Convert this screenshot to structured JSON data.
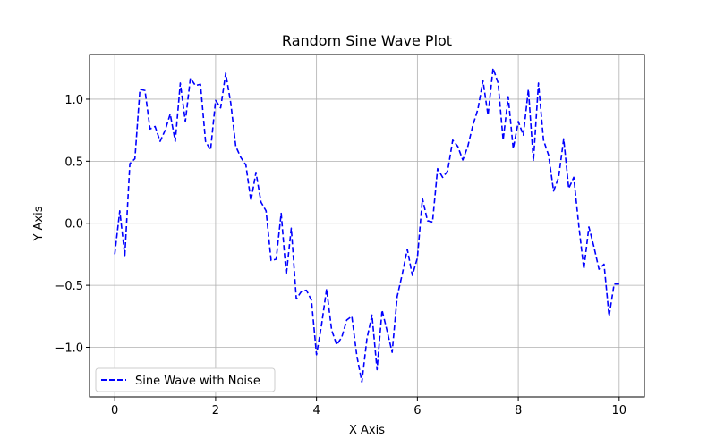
{
  "chart_data": {
    "type": "line",
    "title": "Random Sine Wave Plot",
    "xlabel": "X Axis",
    "ylabel": "Y Axis",
    "xlim": [
      -0.5,
      10.5
    ],
    "ylim": [
      -1.4,
      1.36
    ],
    "xticks": [
      0,
      2,
      4,
      6,
      8,
      10
    ],
    "xtick_labels": [
      "0",
      "2",
      "4",
      "6",
      "8",
      "10"
    ],
    "yticks": [
      -1.0,
      -0.5,
      0.0,
      0.5,
      1.0
    ],
    "ytick_labels": [
      "−1.0",
      "−0.5",
      "0.0",
      "0.5",
      "1.0"
    ],
    "grid": true,
    "legend": {
      "position": "lower-left"
    },
    "series": [
      {
        "name": "Sine Wave with Noise",
        "color": "#0000ff",
        "linestyle": "dashed",
        "x": [
          0,
          0.1,
          0.2,
          0.3,
          0.4,
          0.5,
          0.6,
          0.7,
          0.8,
          0.9,
          1,
          1.1,
          1.2,
          1.3,
          1.4,
          1.5,
          1.6,
          1.7,
          1.8,
          1.9,
          2,
          2.1,
          2.2,
          2.3,
          2.4,
          2.5,
          2.6,
          2.7,
          2.8,
          2.9,
          3,
          3.1,
          3.2,
          3.3,
          3.4,
          3.5,
          3.6,
          3.7,
          3.8,
          3.9,
          4,
          4.1,
          4.2,
          4.3,
          4.4,
          4.5,
          4.6,
          4.7,
          4.8,
          4.9,
          5,
          5.1,
          5.2,
          5.3,
          5.4,
          5.5,
          5.6,
          5.7,
          5.8,
          5.9,
          6,
          6.1,
          6.2,
          6.3,
          6.4,
          6.5,
          6.6,
          6.7,
          6.8,
          6.9,
          7,
          7.1,
          7.2,
          7.3,
          7.4,
          7.5,
          7.6,
          7.7,
          7.8,
          7.9,
          8,
          8.1,
          8.2,
          8.3,
          8.4,
          8.5,
          8.6,
          8.7,
          8.8,
          8.9,
          9,
          9.1,
          9.2,
          9.3,
          9.4,
          9.5,
          9.6,
          9.7,
          9.8,
          9.9,
          10
        ],
        "y": [
          -0.25,
          0.1,
          -0.26,
          0.48,
          0.52,
          1.08,
          1.07,
          0.76,
          0.78,
          0.66,
          0.75,
          0.88,
          0.66,
          1.13,
          0.82,
          1.17,
          1.11,
          1.12,
          0.66,
          0.59,
          0.99,
          0.93,
          1.21,
          0.97,
          0.62,
          0.53,
          0.47,
          0.18,
          0.41,
          0.17,
          0.1,
          -0.3,
          -0.29,
          0.08,
          -0.42,
          -0.04,
          -0.61,
          -0.55,
          -0.54,
          -0.62,
          -1.06,
          -0.82,
          -0.53,
          -0.86,
          -0.98,
          -0.92,
          -0.78,
          -0.75,
          -1.07,
          -1.28,
          -0.93,
          -0.74,
          -1.18,
          -0.7,
          -0.87,
          -1.04,
          -0.59,
          -0.41,
          -0.21,
          -0.42,
          -0.28,
          0.2,
          0.02,
          0.01,
          0.44,
          0.37,
          0.42,
          0.67,
          0.62,
          0.51,
          0.62,
          0.79,
          0.92,
          1.15,
          0.87,
          1.25,
          1.13,
          0.67,
          1.02,
          0.6,
          0.82,
          0.71,
          1.08,
          0.5,
          1.13,
          0.67,
          0.55,
          0.26,
          0.37,
          0.68,
          0.28,
          0.37,
          -0.02,
          -0.37,
          -0.03,
          -0.19,
          -0.37,
          -0.33,
          -0.75,
          -0.49,
          -0.49
        ]
      }
    ]
  }
}
